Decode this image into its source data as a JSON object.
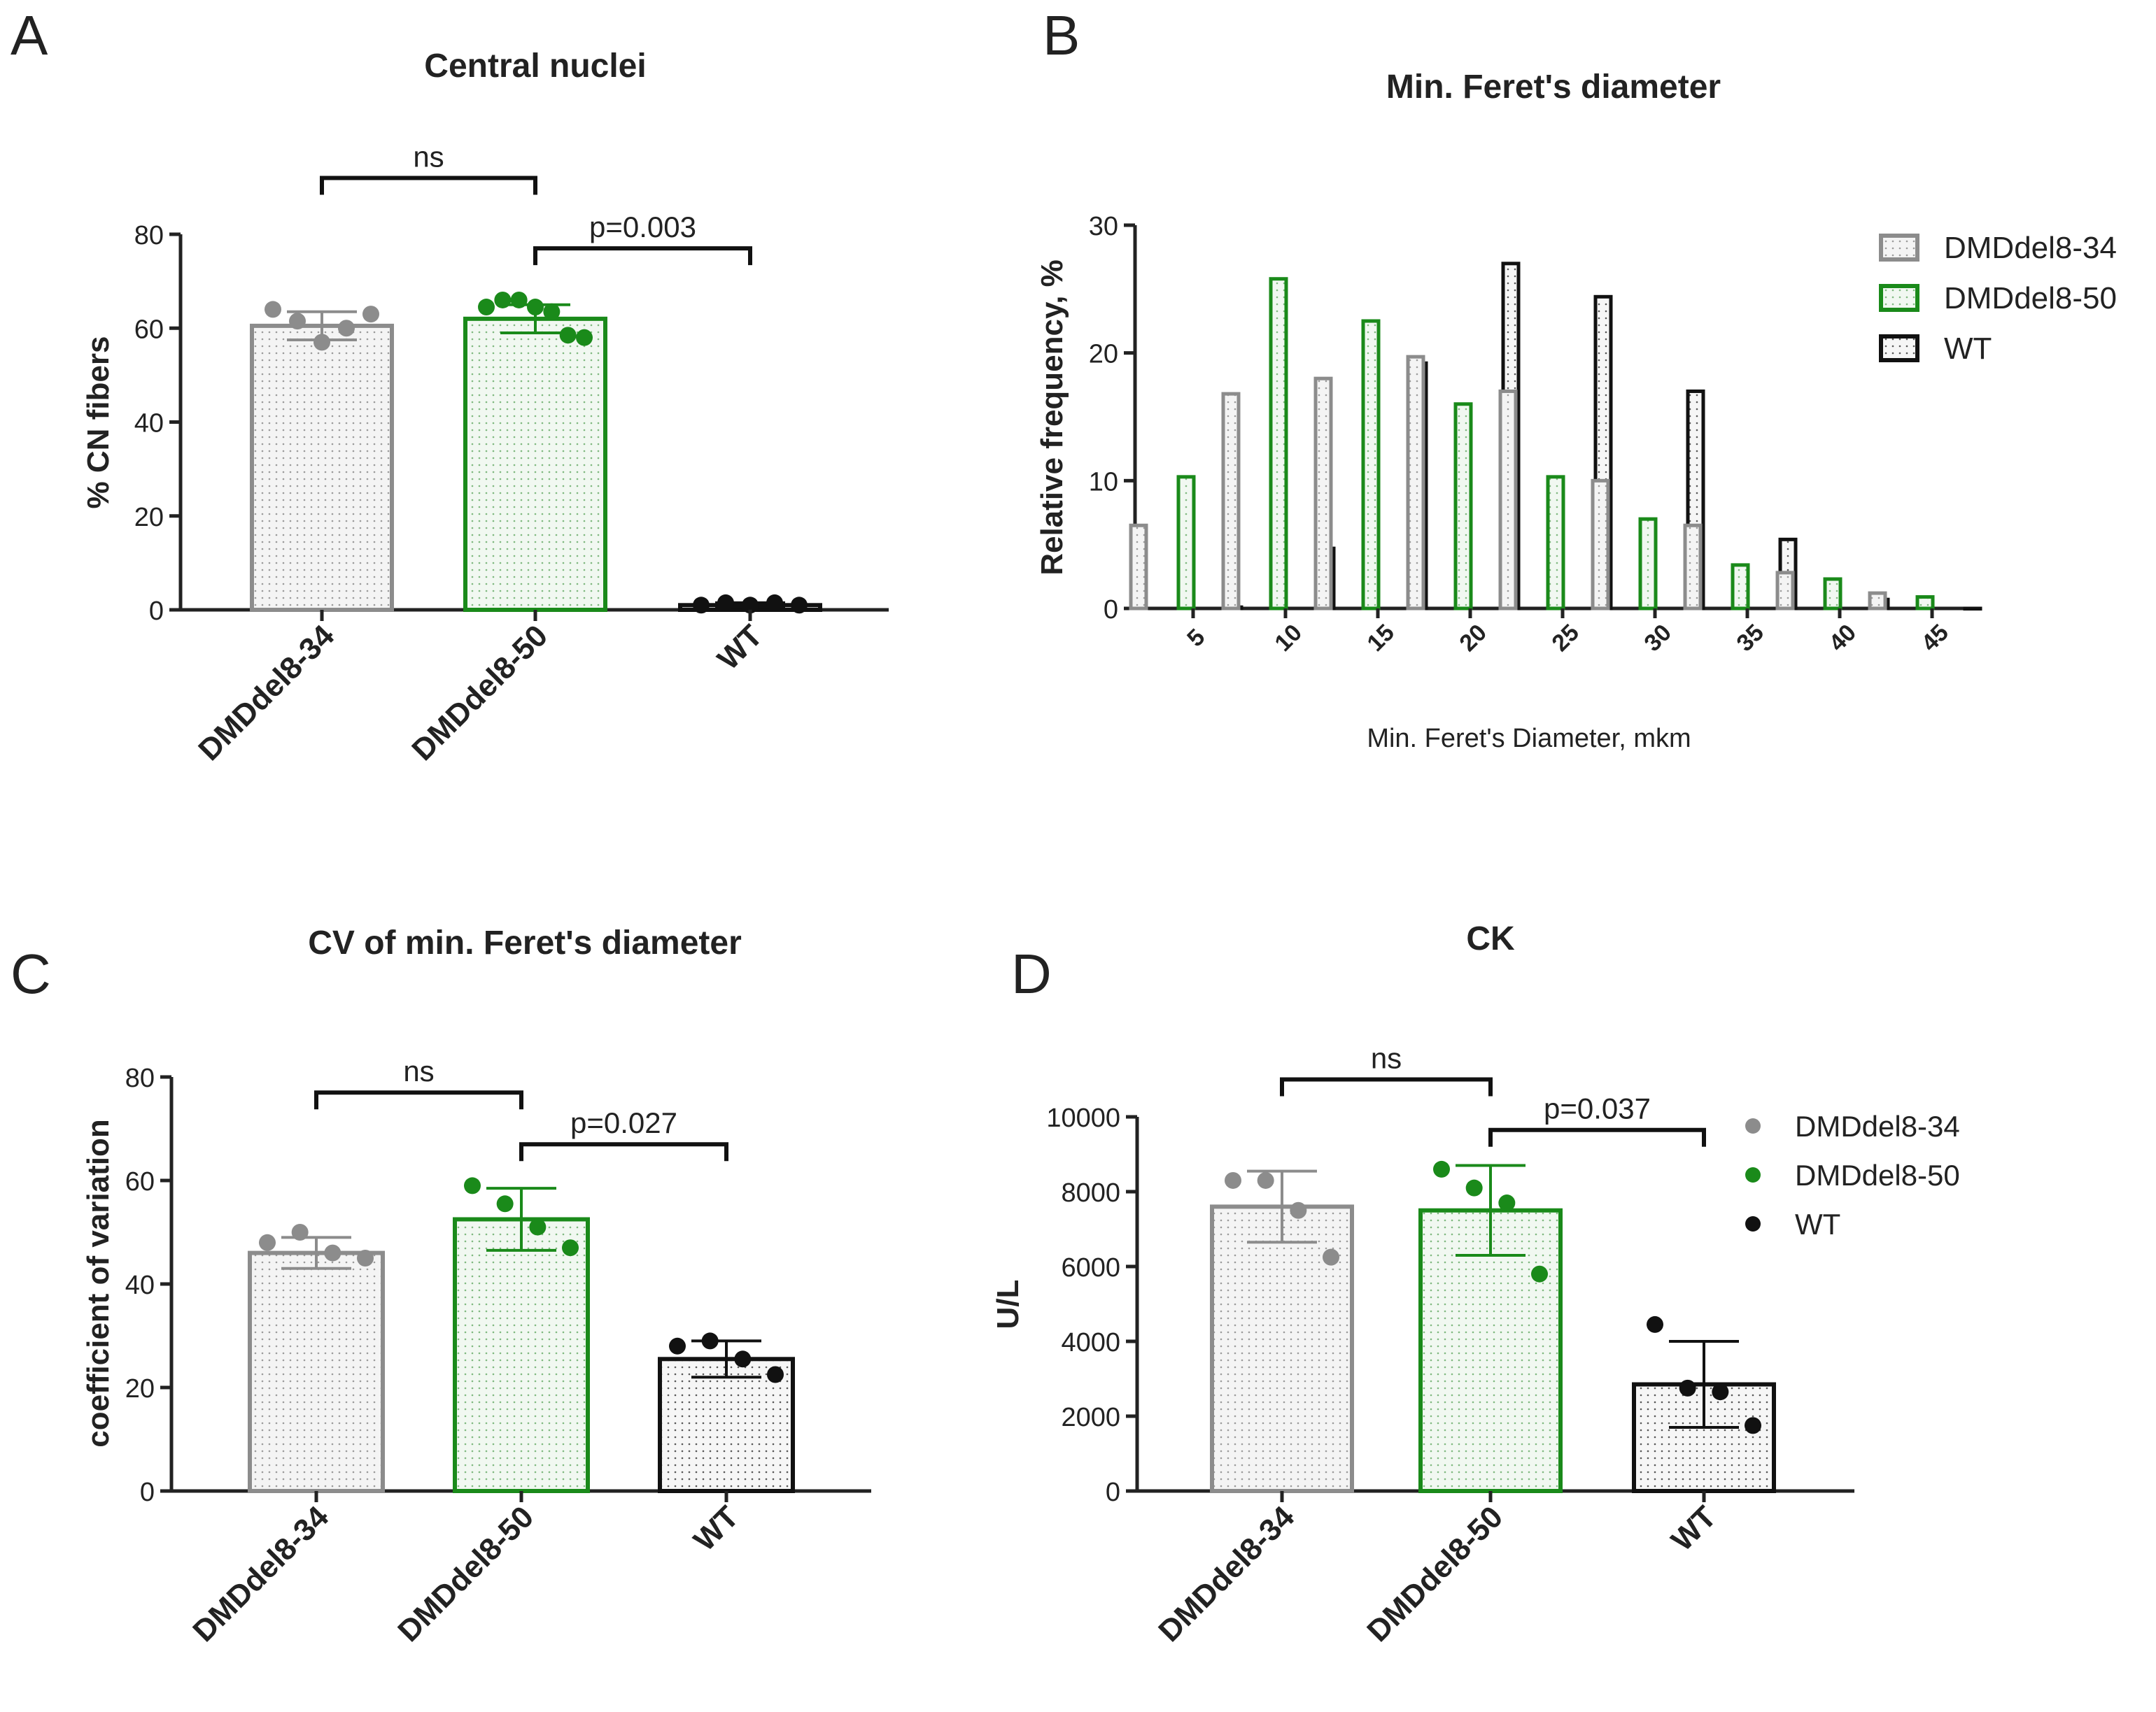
{
  "colors": {
    "gray": "#8c8c8c",
    "green": "#1a8a1a",
    "black": "#111111",
    "grayFill": "#f2f2f2",
    "greenFill": "#eef6ee",
    "blackFill": "#f4f4f4"
  },
  "chart_data": [
    {
      "panel": "A",
      "type": "bar",
      "title": "Central nuclei",
      "ylabel": "% CN fibers",
      "ylim": [
        0,
        80
      ],
      "yticks": [
        "0",
        "20",
        "40",
        "60",
        "80"
      ],
      "categories": [
        "DMDdel8-34",
        "DMDdel8-50",
        "WT"
      ],
      "values": [
        60.5,
        62,
        1
      ],
      "sd": [
        3,
        3,
        0.5
      ],
      "points": [
        [
          64,
          61.5,
          57,
          60,
          63
        ],
        [
          64.5,
          66,
          66,
          64.5,
          63.5,
          58.5,
          58
        ],
        [
          1,
          1.5,
          1,
          1.5,
          1
        ]
      ],
      "comparisons": [
        {
          "from": 0,
          "to": 1,
          "label": "ns",
          "y": 92
        },
        {
          "from": 1,
          "to": 2,
          "label": "p=0.003",
          "y": 77
        }
      ]
    },
    {
      "panel": "B",
      "type": "bar",
      "title": "Min. Feret's diameter",
      "xlabel": "Min. Feret's Diameter, mkm",
      "ylabel": "Relative frequency, %",
      "ylim": [
        0,
        30
      ],
      "yticks": [
        "0",
        "10",
        "20",
        "30"
      ],
      "categories": [
        "5",
        "10",
        "15",
        "20",
        "25",
        "30",
        "35",
        "40",
        "45"
      ],
      "series": [
        {
          "name": "DMDdel8-34",
          "values": [
            6.5,
            16.8,
            18,
            19.7,
            17,
            10,
            6.5,
            2.8,
            1.2
          ]
        },
        {
          "name": "DMDdel8-50",
          "values": [
            10.3,
            25.8,
            22.5,
            16,
            10.3,
            7,
            3.4,
            2.3,
            0.9
          ]
        },
        {
          "name": "WT",
          "values": [
            0.1,
            4.7,
            19.2,
            27,
            24.4,
            17,
            5.4,
            0.7,
            0
          ]
        }
      ],
      "legend": "top-right"
    },
    {
      "panel": "C",
      "type": "bar",
      "title": "CV of min. Feret's diameter",
      "ylabel": "coefficient of variation",
      "ylim": [
        0,
        80
      ],
      "yticks": [
        "0",
        "20",
        "40",
        "60",
        "80"
      ],
      "categories": [
        "DMDdel8-34",
        "DMDdel8-50",
        "WT"
      ],
      "values": [
        46,
        52.5,
        25.5
      ],
      "sd": [
        3,
        6,
        3.5
      ],
      "points": [
        [
          48,
          50,
          46,
          45
        ],
        [
          59,
          55.5,
          51,
          47
        ],
        [
          28,
          29,
          25.5,
          22.5
        ]
      ],
      "comparisons": [
        {
          "from": 0,
          "to": 1,
          "label": "ns",
          "y": 77
        },
        {
          "from": 1,
          "to": 2,
          "label": "p=0.027",
          "y": 67
        }
      ]
    },
    {
      "panel": "D",
      "type": "bar",
      "title": "CK",
      "ylabel": "U/L",
      "ylim": [
        0,
        10000
      ],
      "yticks": [
        "0",
        "2000",
        "4000",
        "6000",
        "8000",
        "10000"
      ],
      "categories": [
        "DMDdel8-34",
        "DMDdel8-50",
        "WT"
      ],
      "values": [
        7600,
        7500,
        2850
      ],
      "sd": [
        950,
        1200,
        1150
      ],
      "points": [
        [
          8300,
          8300,
          7500,
          6250
        ],
        [
          8600,
          8100,
          7700,
          5800
        ],
        [
          4450,
          2750,
          2650,
          1750
        ]
      ],
      "comparisons": [
        {
          "from": 0,
          "to": 1,
          "label": "ns",
          "y": 11000
        },
        {
          "from": 1,
          "to": 2,
          "label": "p=0.037",
          "y": 9650
        }
      ],
      "legend": "right",
      "legend_entries": [
        "DMDdel8-34",
        "DMDdel8-50",
        "WT"
      ]
    }
  ],
  "panel_labels": [
    "A",
    "B",
    "C",
    "D"
  ]
}
